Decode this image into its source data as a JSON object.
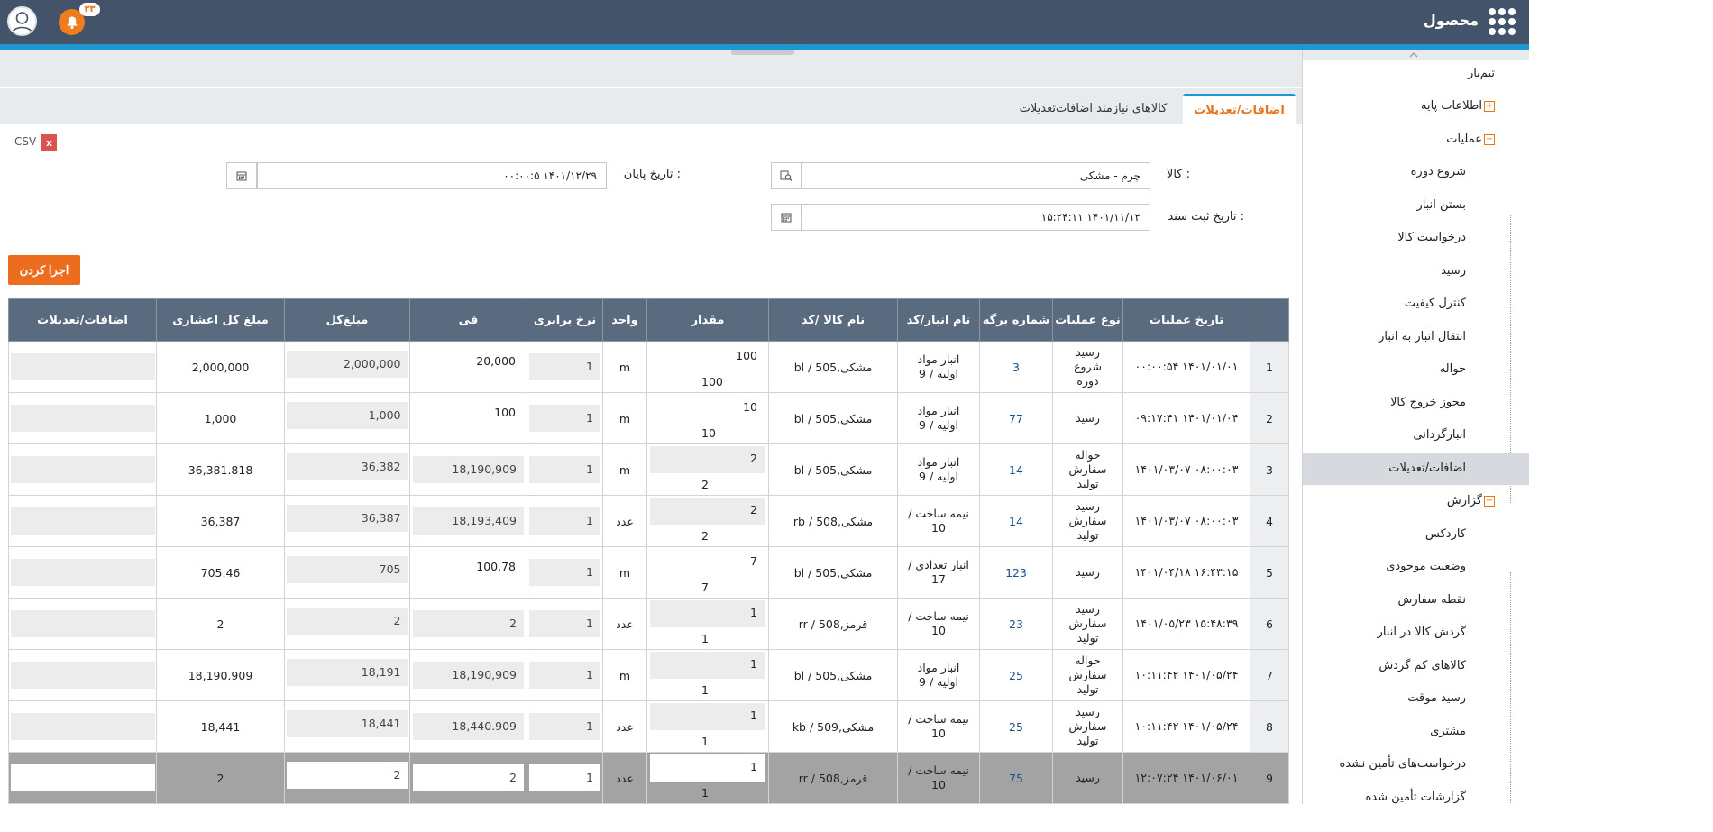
{
  "header": {
    "app_title": "محصول",
    "notification_count": "۳۳"
  },
  "tabs": [
    {
      "label": "اضافات/تعدیلات",
      "active": true
    },
    {
      "label": "کالاهای نیازمند اضافات‌تعدیلات",
      "active": false
    }
  ],
  "sidebar": {
    "items": [
      {
        "label": "تیم‌یار",
        "level": 0,
        "toggle": ""
      },
      {
        "label": "اطلاعات پایه",
        "level": 0,
        "toggle": "+"
      },
      {
        "label": "عملیات",
        "level": 0,
        "toggle": "−"
      },
      {
        "label": "شروع دوره",
        "level": 1
      },
      {
        "label": "بستن انبار",
        "level": 1
      },
      {
        "label": "درخواست کالا",
        "level": 1
      },
      {
        "label": "رسید",
        "level": 1
      },
      {
        "label": "کنترل کیفیت",
        "level": 1
      },
      {
        "label": "انتقال انبار به انبار",
        "level": 1
      },
      {
        "label": "حواله",
        "level": 1
      },
      {
        "label": "مجوز خروج کالا",
        "level": 1
      },
      {
        "label": "انبارگردانی",
        "level": 1
      },
      {
        "label": "اضافات/تعدیلات",
        "level": 1,
        "active": true
      },
      {
        "label": "گزارش",
        "level": 0,
        "toggle": "−"
      },
      {
        "label": "کاردکس",
        "level": 1
      },
      {
        "label": "وضعیت موجودی",
        "level": 1
      },
      {
        "label": "نقطه سفارش",
        "level": 1
      },
      {
        "label": "گردش کالا در انبار",
        "level": 1
      },
      {
        "label": "کالاهای کم گردش",
        "level": 1
      },
      {
        "label": "رسید موقت",
        "level": 1
      },
      {
        "label": "مشتری",
        "level": 1
      },
      {
        "label": "درخواست‌های تأمین نشده",
        "level": 1
      },
      {
        "label": "گزارشات تأمین شده",
        "level": 1
      }
    ]
  },
  "toolbar": {
    "csv_label": "CSV",
    "csv_icon_letter": "x",
    "run_label": "اجرا کردن"
  },
  "form": {
    "item_label": "کالا :",
    "item_value": "چرم - مشکی",
    "end_date_label": "تاریخ پایان :",
    "end_date_value": "۱۴۰۱/۱۲/۲۹ ۰۰:۰۰:۵",
    "doc_date_label": "تاریخ ثبت سند :",
    "doc_date_value": "۱۴۰۱/۱۱/۱۲ ۱۵:۲۴:۱۱"
  },
  "table": {
    "columns": [
      "",
      "تاریخ عملیات",
      "نوع عملیات",
      "شماره برگه",
      "نام انبار/کد",
      "نام کالا /کد",
      "مقدار",
      "واحد",
      "نرخ برابری",
      "فی",
      "مبلغ‌کل",
      "مبلغ کل اعشاری",
      "اضافات/تعدیلات"
    ],
    "rows": [
      {
        "num": "1",
        "date": "۱۴۰۱/۰۱/۰۱ ۰۰:۰۰:۵۴",
        "type": "رسید شروع دوره",
        "sheet": "3",
        "warehouse": "انبار مواد اولیه / 9",
        "item": "bl / مشکی,505",
        "qty_top": "100",
        "qty_bottom": "100",
        "qty_boxed": false,
        "unit": "m",
        "rate": "1",
        "fee": "20,000",
        "fee_boxed": false,
        "total": "2,000,000",
        "total_dec": "2,000,000",
        "adj": ""
      },
      {
        "num": "2",
        "date": "۱۴۰۱/۰۱/۰۴ ۰۹:۱۷:۴۱",
        "type": "رسید",
        "sheet": "77",
        "warehouse": "انبار مواد اولیه / 9",
        "item": "bl / مشکی,505",
        "qty_top": "10",
        "qty_bottom": "10",
        "qty_boxed": false,
        "unit": "m",
        "rate": "1",
        "fee": "100",
        "fee_boxed": false,
        "total": "1,000",
        "total_dec": "1,000",
        "adj": ""
      },
      {
        "num": "3",
        "date": "۰۸:۰۰:۰۳ ۱۴۰۱/۰۳/۰۷",
        "type": "حواله سفارش تولید",
        "sheet": "14",
        "warehouse": "انبار مواد اولیه / 9",
        "item": "bl / مشکی,505",
        "qty_top": "2",
        "qty_bottom": "2",
        "qty_boxed": true,
        "unit": "m",
        "rate": "1",
        "fee": "18,190,909",
        "fee_boxed": true,
        "total": "36,382",
        "total_dec": "36,381.818",
        "adj": ""
      },
      {
        "num": "4",
        "date": "۰۸:۰۰:۰۳ ۱۴۰۱/۰۳/۰۷",
        "type": "رسید سفارش تولید",
        "sheet": "14",
        "warehouse": "نیمه ساخت / 10",
        "item": "rb / مشکی,508",
        "qty_top": "2",
        "qty_bottom": "2",
        "qty_boxed": true,
        "unit": "عدد",
        "rate": "1",
        "fee": "18,193,409",
        "fee_boxed": true,
        "total": "36,387",
        "total_dec": "36,387",
        "adj": ""
      },
      {
        "num": "5",
        "date": "۱۶:۴۳:۱۵ ۱۴۰۱/۰۴/۱۸",
        "type": "رسید",
        "sheet": "123",
        "warehouse": "انبار تعدادی / 17",
        "item": "bl / مشکی,505",
        "qty_top": "7",
        "qty_bottom": "7",
        "qty_boxed": false,
        "unit": "m",
        "rate": "1",
        "fee": "100.78",
        "fee_boxed": false,
        "total": "705",
        "total_dec": "705.46",
        "adj": ""
      },
      {
        "num": "6",
        "date": "۱۵:۴۸:۳۹ ۱۴۰۱/۰۵/۲۳",
        "type": "رسید سفارش تولید",
        "sheet": "23",
        "warehouse": "نیمه ساخت / 10",
        "item": "rr / 508,قرمز",
        "qty_top": "1",
        "qty_bottom": "1",
        "qty_boxed": true,
        "unit": "عدد",
        "rate": "1",
        "fee": "2",
        "fee_boxed": true,
        "total": "2",
        "total_dec": "2",
        "adj": ""
      },
      {
        "num": "7",
        "date": "۱۴۰۱/۰۵/۲۴ ۱۰:۱۱:۴۲",
        "type": "حواله سفارش تولید",
        "sheet": "25",
        "warehouse": "انبار مواد اولیه / 9",
        "item": "bl / مشکی,505",
        "qty_top": "1",
        "qty_bottom": "1",
        "qty_boxed": true,
        "unit": "m",
        "rate": "1",
        "fee": "18,190,909",
        "fee_boxed": true,
        "total": "18,191",
        "total_dec": "18,190.909",
        "adj": ""
      },
      {
        "num": "8",
        "date": "۱۴۰۱/۰۵/۲۴ ۱۰:۱۱:۴۲",
        "type": "رسید سفارش تولید",
        "sheet": "25",
        "warehouse": "نیمه ساخت / 10",
        "item": "kb / مشکی,509",
        "qty_top": "1",
        "qty_bottom": "1",
        "qty_boxed": true,
        "unit": "عدد",
        "rate": "1",
        "fee": "18,440.909",
        "fee_boxed": true,
        "total": "18,441",
        "total_dec": "18,441",
        "adj": ""
      },
      {
        "num": "9",
        "date": "۱۴۰۱/۰۶/۰۱ ۱۲:۰۷:۲۴",
        "type": "رسید",
        "sheet": "75",
        "warehouse": "نیمه ساخت / 10",
        "item": "rr / 508,قرمز",
        "qty_top": "1",
        "qty_bottom": "1",
        "qty_boxed": true,
        "unit": "عدد",
        "rate": "1",
        "fee": "2",
        "fee_boxed": true,
        "total": "2",
        "total_dec": "2",
        "adj": "",
        "selected": true
      }
    ]
  },
  "colors": {
    "header_bg": "#435369",
    "accent": "#ed6d1f",
    "stripe": "#2196d3",
    "table_header_bg": "#5a6b80",
    "selected_row": "#a3a3a3"
  }
}
